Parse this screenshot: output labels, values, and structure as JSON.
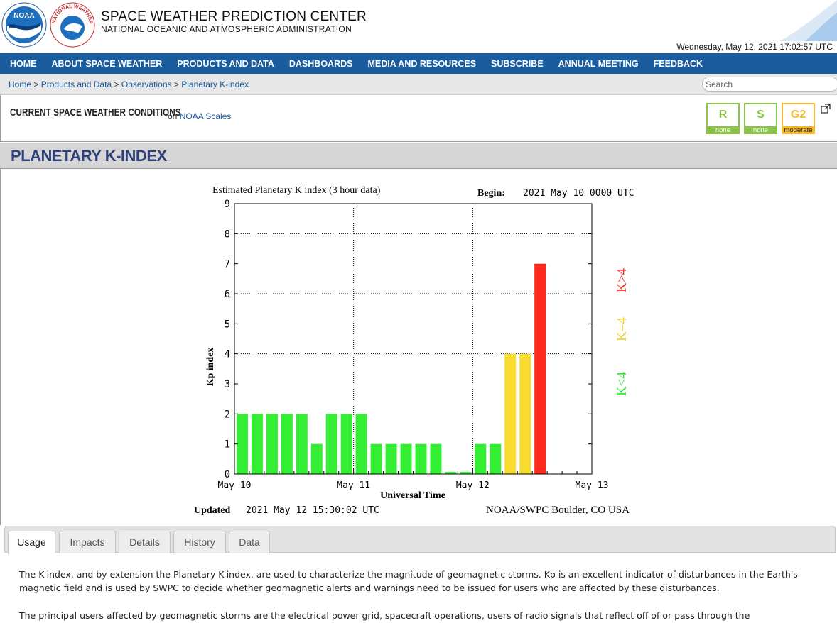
{
  "header": {
    "title": "SPACE WEATHER PREDICTION CENTER",
    "subtitle": "NATIONAL OCEANIC AND ATMOSPHERIC ADMINISTRATION",
    "datetime": "Wednesday, May 12, 2021 17:02:57 UTC",
    "noaa_logo_text": "NOAA",
    "nws_logo_text": "NATIONAL WEATHER SERVICE"
  },
  "nav": {
    "items": [
      "HOME",
      "ABOUT SPACE WEATHER",
      "PRODUCTS AND DATA",
      "DASHBOARDS",
      "MEDIA AND RESOURCES",
      "SUBSCRIBE",
      "ANNUAL MEETING",
      "FEEDBACK"
    ]
  },
  "breadcrumb": {
    "items": [
      "Home",
      "Products and Data",
      "Observations",
      "Planetary K-index"
    ],
    "separator": ">"
  },
  "search": {
    "placeholder": "Search"
  },
  "conditions": {
    "title": "CURRENT SPACE WEATHER CONDITIONS",
    "on_text": "on",
    "link": "NOAA Scales",
    "scales": [
      {
        "letter": "R",
        "level": "none",
        "color": "#8bc34a"
      },
      {
        "letter": "S",
        "level": "none",
        "color": "#8bc34a"
      },
      {
        "letter": "G2",
        "level": "moderate",
        "color": "#f5b82e"
      }
    ]
  },
  "page_title": "PLANETARY K-INDEX",
  "chart_data": {
    "type": "bar",
    "title": "Estimated Planetary K index (3 hour data)",
    "begin_label": "Begin:",
    "begin_value": "2021 May 10 0000 UTC",
    "ylabel": "Kp index",
    "xlabel": "Universal Time",
    "ylim": [
      0,
      9
    ],
    "yticks": [
      "0",
      "1",
      "2",
      "3",
      "4",
      "5",
      "6",
      "7",
      "8",
      "9"
    ],
    "xticks": [
      "May 10",
      "May 11",
      "May 12",
      "May 13"
    ],
    "values": [
      2,
      2,
      2,
      2,
      2,
      1,
      2,
      2,
      2,
      1,
      1,
      1,
      1,
      1,
      0.07,
      0.07,
      1,
      1,
      4,
      4,
      7
    ],
    "colors": {
      "low": "#33ee33",
      "mid": "#f8dc30",
      "high": "#ff2a1e"
    },
    "legend": [
      "K<4",
      "K=4",
      "K>4"
    ],
    "updated_label": "Updated",
    "updated_value": "2021 May 12 15:30:02 UTC",
    "source": "NOAA/SWPC Boulder, CO USA"
  },
  "tabs": [
    "Usage",
    "Impacts",
    "Details",
    "History",
    "Data"
  ],
  "body": {
    "p1": "The K-index, and by extension the Planetary K-index, are used to characterize the magnitude of geomagnetic storms. Kp is an excellent indicator of disturbances in the Earth's magnetic field and is used by SWPC to decide whether geomagnetic alerts and warnings need to be issued for users who are affected by these disturbances.",
    "p2": "The principal users affected by geomagnetic storms are the electrical power grid, spacecraft operations, users of radio signals that reflect off of or pass through the"
  }
}
